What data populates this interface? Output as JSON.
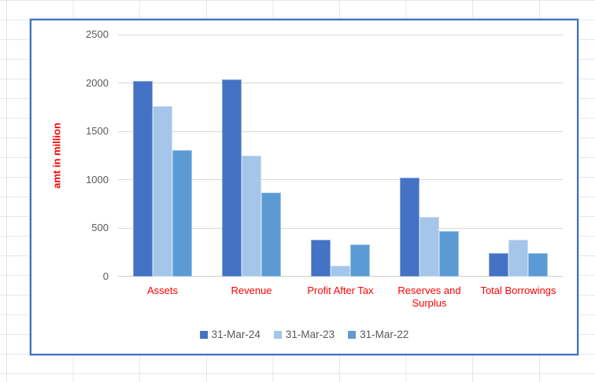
{
  "worksheet": {
    "grid_color": "#E4E7EB"
  },
  "chart": {
    "frame_border_color": "#4472C4",
    "background": "#FFFFFF",
    "gridline_color": "#D9D9D9",
    "axis_tick_color": "#595959",
    "category_label_color": "#FF0000",
    "legend_text_color": "#595959"
  },
  "chart_data": {
    "type": "bar",
    "title": "",
    "ylabel": "amt in million",
    "ylabel_color": "#FF0000",
    "xlabel": "",
    "ylim": [
      0,
      2500
    ],
    "yticks": [
      0,
      500,
      1000,
      1500,
      2000,
      2500
    ],
    "grid": true,
    "legend_position": "bottom",
    "categories": [
      "Assets",
      "Revenue",
      "Profit After Tax",
      "Reserves and Surplus",
      "Total Borrowings"
    ],
    "series": [
      {
        "name": "31-Mar-24",
        "color": "#4472C4",
        "values": [
          2020,
          2035,
          385,
          1025,
          245
        ]
      },
      {
        "name": "31-Mar-23",
        "color": "#A5C6E9",
        "values": [
          1765,
          1250,
          110,
          620,
          385
        ]
      },
      {
        "name": "31-Mar-22",
        "color": "#5B9BD5",
        "values": [
          1310,
          870,
          330,
          470,
          245
        ]
      }
    ]
  }
}
